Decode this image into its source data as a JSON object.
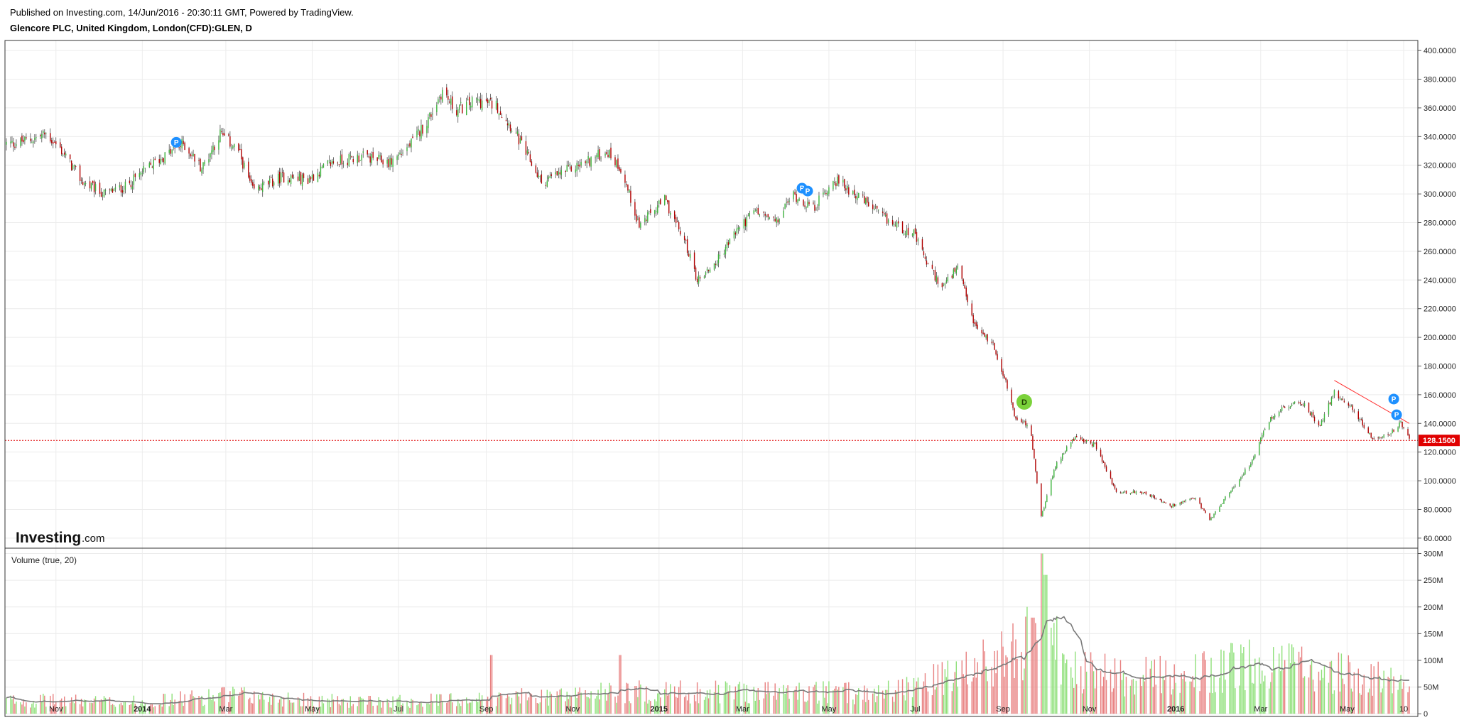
{
  "header": {
    "published": "Published on Investing.com, 14/Jun/2016 - 20:30:11 GMT, Powered by TradingView.",
    "symbol": "Glencore PLC, United Kingdom, London(CFD):GLEN, D"
  },
  "logo": {
    "main": "Investing",
    "suffix": ".com"
  },
  "volume_title": "Volume (true, 20)",
  "last_price_label": "128.1500",
  "colors": {
    "up": "#3bb33b",
    "down": "#b00000",
    "volume_up": "#8fe07a",
    "volume_down": "#e88080",
    "ma_line": "#7a7a7a",
    "last_price": "#e00000",
    "trendline": "#ff3030",
    "marker_p": "#1e90ff",
    "marker_d": "#7bd23a",
    "grid": "#ececec"
  },
  "chart_data": [
    {
      "type": "candlestick",
      "title": "Glencore PLC, United Kingdom, London(CFD):GLEN, D",
      "x_tick_labels": [
        "Nov",
        "2014",
        "Mar",
        "May",
        "Jul",
        "Sep",
        "Nov",
        "2015",
        "Mar",
        "May",
        "Jul",
        "Sep",
        "Nov",
        "2016",
        "Mar",
        "May",
        "10"
      ],
      "y_tick_labels": [
        "400.0000",
        "380.0000",
        "360.0000",
        "340.0000",
        "320.0000",
        "300.0000",
        "280.0000",
        "260.0000",
        "240.0000",
        "220.0000",
        "200.0000",
        "180.0000",
        "160.0000",
        "140.0000",
        "120.0000",
        "100.0000",
        "80.0000",
        "60.0000"
      ],
      "ylim": [
        53,
        407
      ],
      "grid": true,
      "close_path": [
        [
          "2013-10-01",
          335
        ],
        [
          "2013-10-15",
          338
        ],
        [
          "2013-10-25",
          342
        ],
        [
          "2013-11-05",
          330
        ],
        [
          "2013-11-20",
          308
        ],
        [
          "2013-12-05",
          300
        ],
        [
          "2013-12-20",
          305
        ],
        [
          "2014-01-10",
          322
        ],
        [
          "2014-01-30",
          335
        ],
        [
          "2014-02-12",
          318
        ],
        [
          "2014-02-25",
          342
        ],
        [
          "2014-03-10",
          330
        ],
        [
          "2014-03-20",
          302
        ],
        [
          "2014-04-10",
          312
        ],
        [
          "2014-04-28",
          310
        ],
        [
          "2014-05-15",
          322
        ],
        [
          "2014-06-05",
          326
        ],
        [
          "2014-06-25",
          322
        ],
        [
          "2014-07-10",
          335
        ],
        [
          "2014-07-22",
          352
        ],
        [
          "2014-08-01",
          372
        ],
        [
          "2014-08-10",
          358
        ],
        [
          "2014-08-25",
          365
        ],
        [
          "2014-09-08",
          362
        ],
        [
          "2014-09-20",
          345
        ],
        [
          "2014-10-10",
          308
        ],
        [
          "2014-10-25",
          315
        ],
        [
          "2014-11-10",
          322
        ],
        [
          "2014-11-25",
          330
        ],
        [
          "2014-12-05",
          318
        ],
        [
          "2014-12-18",
          278
        ],
        [
          "2015-01-05",
          296
        ],
        [
          "2015-01-20",
          265
        ],
        [
          "2015-01-28",
          240
        ],
        [
          "2015-02-10",
          252
        ],
        [
          "2015-02-25",
          275
        ],
        [
          "2015-03-10",
          288
        ],
        [
          "2015-03-25",
          280
        ],
        [
          "2015-04-05",
          300
        ],
        [
          "2015-04-20",
          290
        ],
        [
          "2015-05-05",
          310
        ],
        [
          "2015-05-20",
          300
        ],
        [
          "2015-06-10",
          282
        ],
        [
          "2015-06-30",
          272
        ],
        [
          "2015-07-10",
          250
        ],
        [
          "2015-07-20",
          235
        ],
        [
          "2015-07-31",
          248
        ],
        [
          "2015-08-12",
          208
        ],
        [
          "2015-08-25",
          195
        ],
        [
          "2015-09-02",
          172
        ],
        [
          "2015-09-10",
          143
        ],
        [
          "2015-09-20",
          138
        ],
        [
          "2015-09-28",
          75
        ],
        [
          "2015-10-08",
          110
        ],
        [
          "2015-10-20",
          130
        ],
        [
          "2015-11-05",
          125
        ],
        [
          "2015-11-20",
          92
        ],
        [
          "2015-12-10",
          92
        ],
        [
          "2015-12-28",
          82
        ],
        [
          "2016-01-15",
          88
        ],
        [
          "2016-01-25",
          72
        ],
        [
          "2016-02-05",
          88
        ],
        [
          "2016-02-25",
          115
        ],
        [
          "2016-03-05",
          140
        ],
        [
          "2016-03-15",
          150
        ],
        [
          "2016-03-30",
          155
        ],
        [
          "2016-04-12",
          138
        ],
        [
          "2016-04-22",
          162
        ],
        [
          "2016-05-05",
          150
        ],
        [
          "2016-05-20",
          128
        ],
        [
          "2016-05-30",
          132
        ],
        [
          "2016-06-08",
          140
        ],
        [
          "2016-06-14",
          128.15
        ]
      ],
      "last_price": 128.15,
      "trendline": [
        [
          "2016-04-22",
          170
        ],
        [
          "2016-06-14",
          140
        ]
      ],
      "event_markers": [
        {
          "label": "P",
          "date": "2014-01-25",
          "y": 336
        },
        {
          "label": "P",
          "date": "2015-04-12",
          "y": 304
        },
        {
          "label": "P",
          "date": "2015-04-16",
          "y": 302
        },
        {
          "label": "D",
          "date": "2015-09-16",
          "y": 155
        },
        {
          "label": "P",
          "date": "2016-06-03",
          "y": 157
        },
        {
          "label": "P",
          "date": "2016-06-05",
          "y": 146
        }
      ]
    },
    {
      "type": "bar",
      "title": "Volume (true, 20)",
      "y_tick_labels": [
        "300M",
        "250M",
        "200M",
        "150M",
        "100M",
        "50M",
        "0"
      ],
      "ylim": [
        -5,
        310
      ],
      "volume_path_millions": [
        [
          "2013-10-01",
          25
        ],
        [
          "2014-01-01",
          22
        ],
        [
          "2014-03-01",
          35
        ],
        [
          "2014-06-01",
          22
        ],
        [
          "2014-09-01",
          28
        ],
        [
          "2014-12-01",
          40
        ],
        [
          "2015-03-01",
          42
        ],
        [
          "2015-06-01",
          38
        ],
        [
          "2015-08-01",
          70
        ],
        [
          "2015-09-10",
          120
        ],
        [
          "2015-09-30",
          150
        ],
        [
          "2015-10-20",
          80
        ],
        [
          "2015-11-20",
          70
        ],
        [
          "2016-01-01",
          70
        ],
        [
          "2016-03-01",
          95
        ],
        [
          "2016-04-15",
          80
        ],
        [
          "2016-06-14",
          55
        ]
      ],
      "spikes_millions": [
        [
          "2015-09-28",
          300
        ],
        [
          "2015-10-01",
          260
        ],
        [
          "2015-09-22",
          180
        ],
        [
          "2014-09-05",
          110
        ],
        [
          "2014-12-05",
          110
        ]
      ],
      "moving_average_length": 20
    }
  ]
}
